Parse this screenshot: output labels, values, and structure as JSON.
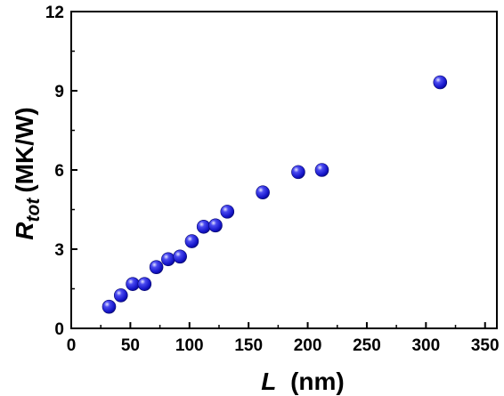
{
  "chart_data": {
    "type": "scatter",
    "title": "",
    "xlabel": {
      "symbol": "L",
      "unit": "(nm)"
    },
    "ylabel": {
      "symbol": "R",
      "subscript": "tot",
      "unit": "(MK/W)"
    },
    "xlim": [
      0,
      360
    ],
    "ylim": [
      0,
      12
    ],
    "x_ticks": [
      "0",
      "50",
      "100",
      "150",
      "200",
      "250",
      "300",
      "350"
    ],
    "y_ticks": [
      "0",
      "3",
      "6",
      "9",
      "12"
    ],
    "grid": false,
    "legend": "none",
    "marker_color": "#1a1ad0",
    "series": [
      {
        "points": [
          {
            "x": 32,
            "y": 0.82
          },
          {
            "x": 42,
            "y": 1.25
          },
          {
            "x": 52,
            "y": 1.68
          },
          {
            "x": 62,
            "y": 1.68
          },
          {
            "x": 72,
            "y": 2.32
          },
          {
            "x": 82,
            "y": 2.62
          },
          {
            "x": 92,
            "y": 2.72
          },
          {
            "x": 102,
            "y": 3.3
          },
          {
            "x": 112,
            "y": 3.85
          },
          {
            "x": 122,
            "y": 3.9
          },
          {
            "x": 132,
            "y": 4.42
          },
          {
            "x": 162,
            "y": 5.15
          },
          {
            "x": 192,
            "y": 5.92
          },
          {
            "x": 212,
            "y": 6.0
          },
          {
            "x": 312,
            "y": 9.32
          }
        ]
      }
    ]
  }
}
